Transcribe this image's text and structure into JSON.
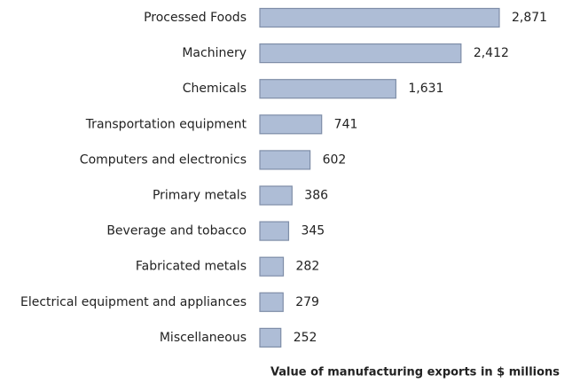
{
  "chart_data": {
    "type": "bar",
    "orientation": "horizontal",
    "x_label": "Value of manufacturing exports in $ millions",
    "categories": [
      "Processed Foods",
      "Machinery",
      "Chemicals",
      "Transportation equipment",
      "Computers and electronics",
      "Primary metals",
      "Beverage and tobacco",
      "Fabricated metals",
      "Electrical equipment and appliances",
      "Miscellaneous"
    ],
    "values": [
      2871,
      2412,
      1631,
      741,
      602,
      386,
      345,
      282,
      279,
      252
    ],
    "value_labels": [
      "2,871",
      "2,412",
      "1,631",
      "741",
      "602",
      "386",
      "345",
      "282",
      "279",
      "252"
    ],
    "color": "#aebdd6"
  }
}
